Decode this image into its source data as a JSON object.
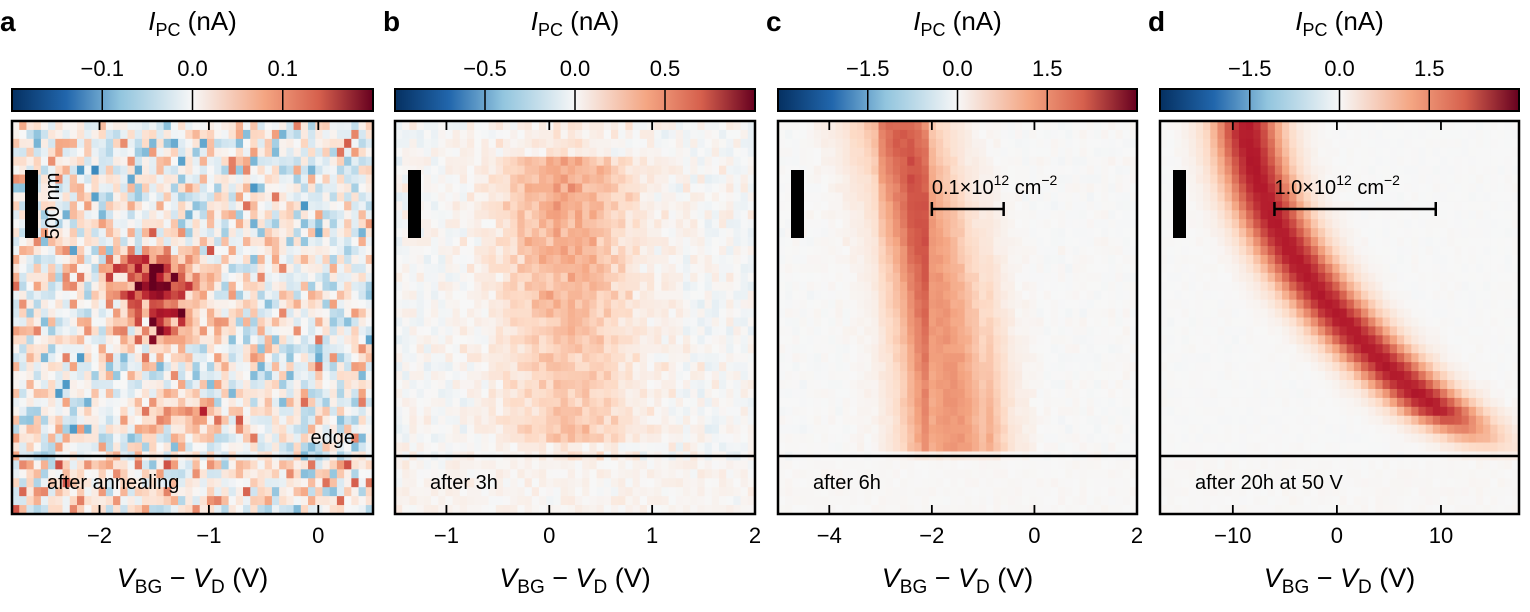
{
  "colorbar_title": {
    "main": "I",
    "sub": "PC",
    "unit": " (nA)"
  },
  "x_axis_label": {
    "v1": "V",
    "sub1": "BG",
    "minus": " − ",
    "v2": "V",
    "sub2": "D",
    "unit": " (V)"
  },
  "scale_bar_label": "500 nm",
  "colors": {
    "negative": "#2166ac",
    "neutral": "#f7f7f7",
    "positive": "#b2182b"
  },
  "chart_data": [
    {
      "type": "heatmap",
      "panel_label": "a",
      "colorbar_ticks": [
        {
          "value": -0.1,
          "label": "−0.1"
        },
        {
          "value": 0.0,
          "label": "0.0"
        },
        {
          "value": 0.1,
          "label": "0.1"
        }
      ],
      "color_range": [
        -0.2,
        0.2
      ],
      "xlim": [
        -2.8,
        0.5
      ],
      "x_ticks": [
        {
          "value": -2,
          "label": "−2"
        },
        {
          "value": -1,
          "label": "−1"
        },
        {
          "value": 0,
          "label": "0"
        }
      ],
      "annotations": [
        "edge",
        "after annealing"
      ],
      "caption": "after annealing",
      "edge_label": "edge",
      "density_bar": null,
      "colormap": "RdBu_r"
    },
    {
      "type": "heatmap",
      "panel_label": "b",
      "colorbar_ticks": [
        {
          "value": -0.5,
          "label": "−0.5"
        },
        {
          "value": 0.0,
          "label": "0.0"
        },
        {
          "value": 0.5,
          "label": "0.5"
        }
      ],
      "color_range": [
        -1.0,
        1.0
      ],
      "xlim": [
        -1.5,
        2.0
      ],
      "x_ticks": [
        {
          "value": -1,
          "label": "−1"
        },
        {
          "value": 0,
          "label": "0"
        },
        {
          "value": 1,
          "label": "1"
        },
        {
          "value": 2,
          "label": "2"
        }
      ],
      "caption": "after 3h",
      "density_bar": null,
      "colormap": "RdBu_r"
    },
    {
      "type": "heatmap",
      "panel_label": "c",
      "colorbar_ticks": [
        {
          "value": -1.5,
          "label": "−1.5"
        },
        {
          "value": 0.0,
          "label": "0.0"
        },
        {
          "value": 1.5,
          "label": "1.5"
        }
      ],
      "color_range": [
        -3.0,
        3.0
      ],
      "xlim": [
        -5.0,
        2.0
      ],
      "x_ticks": [
        {
          "value": -4,
          "label": "−4"
        },
        {
          "value": -2,
          "label": "−2"
        },
        {
          "value": 0,
          "label": "0"
        },
        {
          "value": 2,
          "label": "2"
        }
      ],
      "caption": "after 6h",
      "density_bar": {
        "coef": "0.1",
        "exp": "12",
        "unit": "cm",
        "unit_exp": "−2",
        "x_start": -2.0,
        "x_end": -0.6
      },
      "colormap": "RdBu_r"
    },
    {
      "type": "heatmap",
      "panel_label": "d",
      "colorbar_ticks": [
        {
          "value": -1.5,
          "label": "−1.5"
        },
        {
          "value": 0.0,
          "label": "0.0"
        },
        {
          "value": 1.5,
          "label": "1.5"
        }
      ],
      "color_range": [
        -3.0,
        3.0
      ],
      "xlim": [
        -17.0,
        17.5
      ],
      "x_ticks": [
        {
          "value": -10,
          "label": "−10"
        },
        {
          "value": 0,
          "label": "0"
        },
        {
          "value": 10,
          "label": "10"
        }
      ],
      "caption": "after 20h at 50 V",
      "density_bar": {
        "coef": "1.0",
        "exp": "12",
        "unit": "cm",
        "unit_exp": "−2",
        "x_start": -6.0,
        "x_end": 9.5
      },
      "colormap": "RdBu_r"
    }
  ]
}
